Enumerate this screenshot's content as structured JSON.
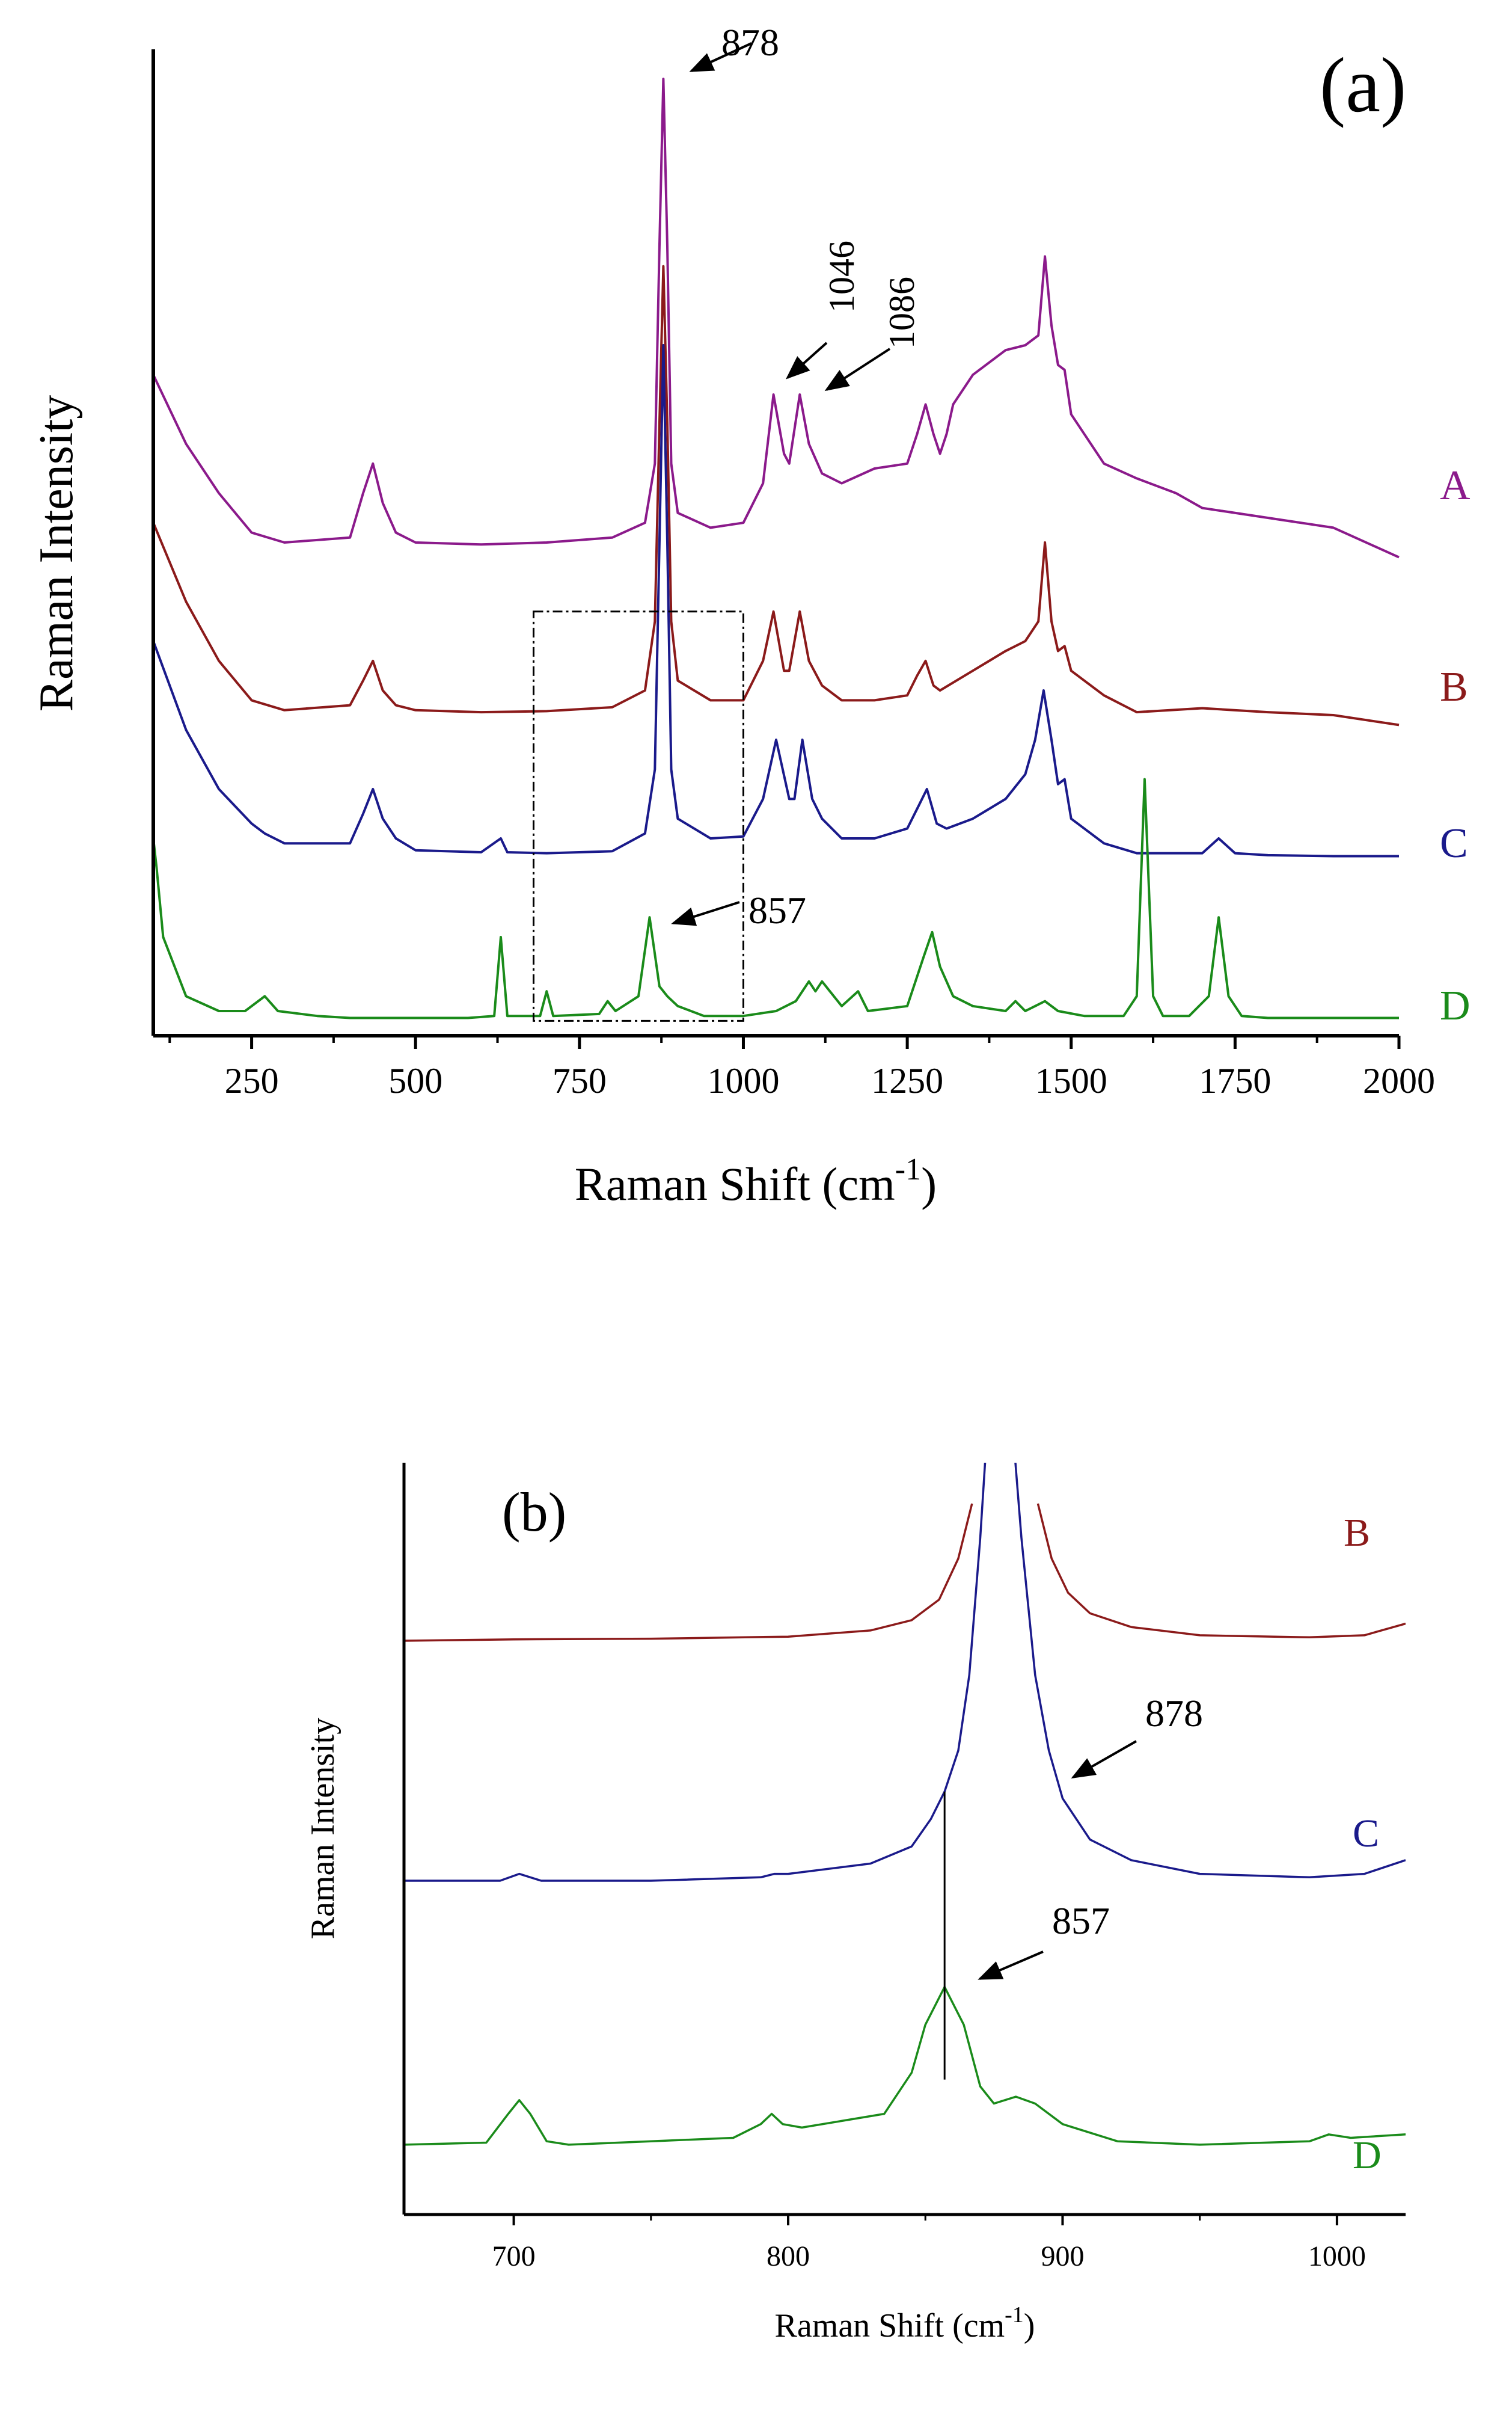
{
  "chart_data": [
    {
      "panel_label": "(a)",
      "type": "line",
      "xlabel": "Raman Shift (cm",
      "xlabel_sup": "-1",
      "xlabel_end": ")",
      "ylabel": "Raman Intensity",
      "xlim": [
        100,
        2000
      ],
      "ylim": [
        0,
        100
      ],
      "xticks": [
        250,
        500,
        750,
        1000,
        1250,
        1500,
        1750,
        2000
      ],
      "xtick_labels": [
        "250",
        "500",
        "750",
        "1000",
        "1250",
        "1500",
        "1750",
        "2000"
      ],
      "zoom_box_x": [
        680,
        1000
      ],
      "zoom_box_y": [
        1.5,
        43
      ],
      "series": [
        {
          "name": "A",
          "color": "#8b1a8b",
          "x": [
            100,
            150,
            200,
            250,
            300,
            400,
            420,
            435,
            450,
            470,
            500,
            600,
            700,
            800,
            850,
            865,
            872,
            878,
            884,
            890,
            900,
            950,
            1000,
            1030,
            1046,
            1062,
            1070,
            1086,
            1100,
            1120,
            1150,
            1200,
            1250,
            1265,
            1278,
            1290,
            1300,
            1310,
            1320,
            1350,
            1400,
            1430,
            1450,
            1460,
            1470,
            1480,
            1490,
            1500,
            1550,
            1600,
            1660,
            1700,
            1800,
            1900,
            2000
          ],
          "y": [
            67,
            60,
            55,
            51,
            50,
            50.5,
            55,
            58,
            54,
            51,
            50,
            49.8,
            50,
            50.5,
            52,
            58,
            80,
            97,
            80,
            58,
            53,
            51.5,
            52,
            56,
            65,
            59,
            58,
            65,
            60,
            57,
            56,
            57.5,
            58,
            61,
            64,
            61,
            59,
            61,
            64,
            67,
            69.5,
            70,
            71,
            79,
            72,
            68,
            67.5,
            63,
            58,
            56.5,
            55,
            53.5,
            52.5,
            51.5,
            48.5
          ]
        },
        {
          "name": "B",
          "color": "#8b1a1a",
          "x": [
            100,
            150,
            200,
            250,
            300,
            400,
            420,
            435,
            450,
            470,
            500,
            600,
            700,
            800,
            850,
            865,
            872,
            878,
            884,
            890,
            900,
            950,
            1000,
            1030,
            1046,
            1062,
            1070,
            1086,
            1100,
            1120,
            1150,
            1200,
            1250,
            1265,
            1278,
            1290,
            1300,
            1350,
            1400,
            1430,
            1450,
            1460,
            1470,
            1480,
            1490,
            1500,
            1550,
            1600,
            1700,
            1800,
            1900,
            2000
          ],
          "y": [
            52,
            44,
            38,
            34,
            33,
            33.5,
            36,
            38,
            35,
            33.5,
            33,
            32.8,
            32.9,
            33.3,
            35,
            42,
            62,
            78,
            62,
            42,
            36,
            34,
            34,
            38,
            43,
            37,
            37,
            43,
            38,
            35.5,
            34,
            34,
            34.5,
            36.5,
            38,
            35.5,
            35,
            37,
            39,
            40,
            42,
            50,
            42,
            39,
            39.5,
            37,
            34.5,
            32.8,
            33.2,
            32.8,
            32.5,
            31.5
          ]
        },
        {
          "name": "C",
          "color": "#1a1a8b",
          "x": [
            100,
            150,
            200,
            250,
            270,
            300,
            400,
            420,
            435,
            450,
            470,
            500,
            600,
            630,
            640,
            700,
            800,
            850,
            865,
            872,
            878,
            884,
            890,
            900,
            950,
            1000,
            1030,
            1050,
            1070,
            1078,
            1090,
            1105,
            1120,
            1150,
            1200,
            1250,
            1265,
            1280,
            1295,
            1310,
            1350,
            1400,
            1430,
            1445,
            1458,
            1470,
            1480,
            1490,
            1500,
            1550,
            1600,
            1700,
            1725,
            1750,
            1800,
            1900,
            2000
          ],
          "y": [
            40,
            31,
            25,
            21.5,
            20.5,
            19.5,
            19.5,
            22.5,
            25,
            22,
            20,
            18.8,
            18.6,
            20,
            18.6,
            18.5,
            18.7,
            20.5,
            27,
            50,
            70,
            50,
            27,
            22,
            20,
            20.2,
            24,
            30,
            24,
            24,
            30,
            24,
            22,
            20,
            20,
            21,
            23,
            25,
            21.5,
            21,
            22,
            24,
            26.5,
            30,
            35,
            30,
            25.5,
            26,
            22,
            19.5,
            18.5,
            18.5,
            20,
            18.5,
            18.3,
            18.2,
            18.2
          ]
        },
        {
          "name": "D",
          "color": "#1a8b1a",
          "x": [
            100,
            105,
            115,
            150,
            200,
            240,
            270,
            290,
            350,
            400,
            500,
            580,
            620,
            630,
            640,
            690,
            700,
            710,
            780,
            793,
            805,
            840,
            857,
            872,
            884,
            900,
            940,
            1000,
            1050,
            1080,
            1100,
            1110,
            1120,
            1150,
            1175,
            1190,
            1250,
            1275,
            1288,
            1300,
            1320,
            1350,
            1400,
            1415,
            1430,
            1445,
            1460,
            1480,
            1520,
            1580,
            1600,
            1612,
            1625,
            1640,
            1680,
            1710,
            1725,
            1740,
            1760,
            1800,
            1900,
            2000
          ],
          "y": [
            20,
            17,
            10,
            4,
            2.5,
            2.5,
            4,
            2.5,
            2,
            1.8,
            1.8,
            1.8,
            2,
            10,
            2,
            2,
            4.5,
            2,
            2.2,
            3.5,
            2.5,
            4,
            12,
            5,
            4,
            3,
            2,
            2,
            2.5,
            3.5,
            5.5,
            4.5,
            5.5,
            3,
            4.5,
            2.5,
            3,
            8,
            10.5,
            7,
            4,
            3,
            2.5,
            3.5,
            2.5,
            3,
            3.5,
            2.5,
            2,
            2,
            4,
            26,
            4,
            2,
            2,
            4,
            12,
            4,
            2,
            1.8,
            1.8,
            1.8
          ]
        }
      ],
      "series_labels": [
        "A",
        "B",
        "C",
        "D"
      ],
      "annotations": [
        {
          "text": "878",
          "x": 878,
          "y": 97,
          "rotated": false
        },
        {
          "text": "1046",
          "x": 1046,
          "y": 65,
          "rotated": true
        },
        {
          "text": "1086",
          "x": 1086,
          "y": 65,
          "rotated": true
        },
        {
          "text": "857",
          "x": 857,
          "y": 12,
          "rotated": false
        }
      ]
    },
    {
      "panel_label": "(b)",
      "type": "line",
      "xlabel": "Raman Shift (cm",
      "xlabel_sup": "-1",
      "xlabel_end": ")",
      "ylabel": "Raman Intensity",
      "xlim": [
        660,
        1025
      ],
      "ylim": [
        0,
        100
      ],
      "xticks": [
        700,
        800,
        900,
        1000
      ],
      "xtick_labels": [
        "700",
        "800",
        "900",
        "1000"
      ],
      "marker_line": {
        "x": 857,
        "y_from": 16,
        "y_to": 58
      },
      "series": [
        {
          "name": "B",
          "color": "#8b1a1a",
          "x": [
            660,
            700,
            750,
            800,
            830,
            845,
            855,
            862,
            867
          ],
          "x2": [
            891,
            896,
            902,
            910,
            925,
            950,
            990,
            1010,
            1025
          ],
          "y": [
            80,
            80.2,
            80.3,
            80.6,
            81.5,
            83,
            86,
            92,
            100
          ],
          "y2": [
            100,
            92,
            87,
            84,
            82,
            80.8,
            80.5,
            80.8,
            82.5
          ]
        },
        {
          "name": "C",
          "color": "#1a1a8b",
          "x": [
            660,
            695,
            702,
            710,
            750,
            790,
            795,
            800,
            830,
            845,
            852,
            857,
            862,
            866,
            870,
            874,
            880,
            885,
            890,
            895,
            900,
            910,
            925,
            950,
            990,
            1010,
            1025
          ],
          "y": [
            45,
            45,
            46,
            45,
            45,
            45.5,
            46,
            46,
            47.5,
            50,
            54,
            58,
            64,
            75,
            95,
            120,
            120,
            95,
            75,
            64,
            57,
            51,
            48,
            46,
            45.5,
            46,
            48
          ],
          "clip_top": 100
        },
        {
          "name": "D",
          "color": "#1a8b1a",
          "x": [
            660,
            690,
            698,
            702,
            706,
            712,
            720,
            750,
            780,
            790,
            794,
            798,
            805,
            820,
            835,
            845,
            850,
            857,
            864,
            870,
            875,
            883,
            890,
            900,
            920,
            950,
            990,
            997,
            1005,
            1025
          ],
          "y": [
            6.5,
            6.8,
            11,
            13,
            11,
            7,
            6.5,
            7,
            7.5,
            9.5,
            11,
            9.5,
            9,
            10,
            11,
            17,
            24,
            29.5,
            24,
            15,
            12.5,
            13.5,
            12.5,
            9.5,
            7,
            6.5,
            7,
            8,
            7.5,
            8
          ]
        }
      ],
      "series_labels": [
        "B",
        "C",
        "D"
      ],
      "annotations": [
        {
          "text": "878",
          "x": 878,
          "y": 60
        },
        {
          "text": "857",
          "x": 857,
          "y": 29.5
        }
      ]
    }
  ],
  "colors": {
    "A": "#8b1a8b",
    "B": "#8b1a1a",
    "C": "#1a1a8b",
    "D": "#1a8b1a",
    "axis": "#000000"
  }
}
